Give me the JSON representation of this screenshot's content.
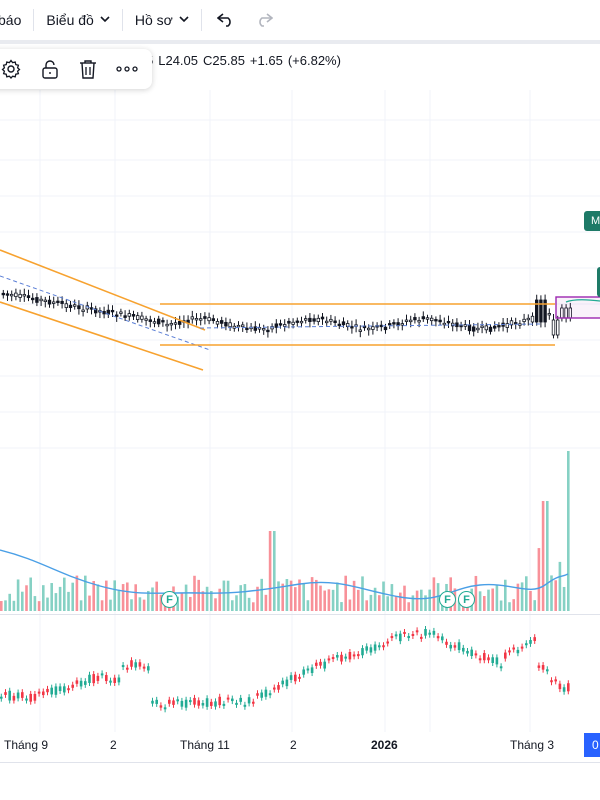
{
  "toolbar": {
    "alerts_label": "báo",
    "chart_menu_label": "Biểu đồ",
    "profile_menu_label": "Hồ sơ",
    "undo_icon": "undo-icon",
    "redo_icon": "redo-icon"
  },
  "floating_toolbar": {
    "icons": [
      "gear-icon",
      "lock-icon",
      "trash-icon",
      "more-icon"
    ],
    "more_label": "ooo"
  },
  "legend": {
    "open_fragment": "5",
    "low": "L24.05",
    "close": "C25.85",
    "change": "+1.65",
    "change_pct": "(+6.82%)"
  },
  "price_tag": "M",
  "time_tag": "0",
  "x_axis": [
    "Tháng 9",
    "2",
    "Tháng 11",
    "2",
    "2026",
    "Tháng 3"
  ],
  "event_markers": [
    "F",
    "F",
    "F"
  ],
  "colors": {
    "up": "#22ab94",
    "down": "#f23645",
    "channel": "#f7a22f",
    "volume_ma": "#4a9fe6",
    "dashed_trend": "#5b7fd6",
    "marker_box": "#9c27b0"
  }
}
